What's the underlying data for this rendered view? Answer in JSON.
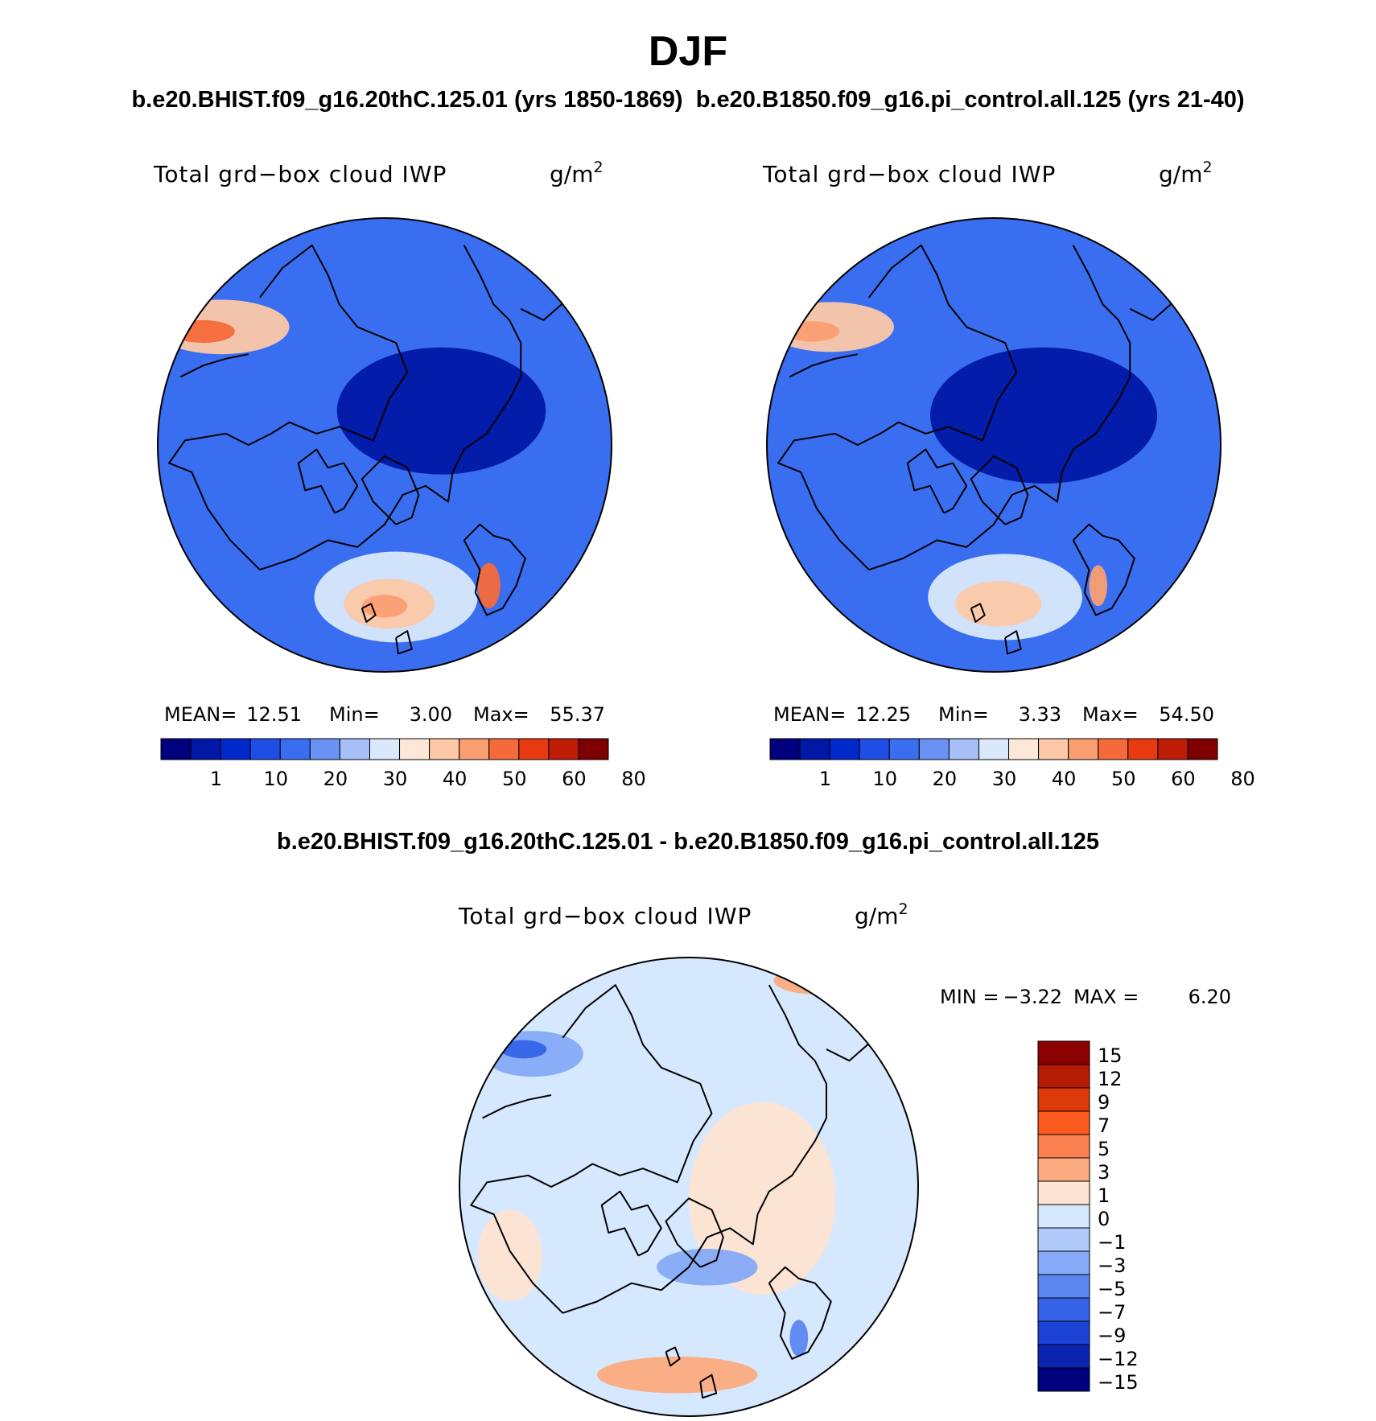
{
  "page": {
    "title": "DJF",
    "case_header_left": "b.e20.BHIST.f09_g16.20thC.125.01 (yrs 1850-1869)",
    "case_header_right": "b.e20.B1850.f09_g16.pi_control.all.125 (yrs 21-40)",
    "diff_header": "b.e20.BHIST.f09_g16.20thC.125.01 - b.e20.B1850.f09_g16.pi_control.all.125"
  },
  "chart_data": [
    {
      "type": "heatmap",
      "projection": "north-polar-stereographic",
      "title": "Total grd−box cloud IWP",
      "units_base": "g/m",
      "units_exp": "2",
      "stats": {
        "mean_label": "MEAN=",
        "mean": "12.51",
        "min_label": "Min=",
        "min": "3.00",
        "max_label": "Max=",
        "max": "55.37"
      },
      "colorbar": {
        "orientation": "horizontal",
        "levels": [
          "1",
          "10",
          "20",
          "30",
          "40",
          "50",
          "60",
          "80"
        ],
        "colors": [
          "#00007f",
          "#0018a5",
          "#0029cc",
          "#1e4ee6",
          "#3a6ef0",
          "#6a92f5",
          "#a6c0f7",
          "#d9e8fb",
          "#fde8d8",
          "#fcc8a8",
          "#fb9e72",
          "#f56a3a",
          "#e73a10",
          "#be1c05",
          "#7f0000"
        ]
      },
      "features": [
        {
          "name": "pacific-low",
          "cx": -0.72,
          "cy": -0.52,
          "rx": 0.3,
          "ry": 0.12,
          "level": 9
        },
        {
          "name": "pacific-core",
          "cx": -0.8,
          "cy": -0.5,
          "rx": 0.14,
          "ry": 0.05,
          "level": 11
        },
        {
          "name": "atlantic-storm-track",
          "cx": 0.05,
          "cy": 0.67,
          "rx": 0.36,
          "ry": 0.2,
          "level": 7
        },
        {
          "name": "atlantic-core",
          "cx": 0.02,
          "cy": 0.7,
          "rx": 0.2,
          "ry": 0.11,
          "level": 9
        },
        {
          "name": "atlantic-peak",
          "cx": 0.0,
          "cy": 0.71,
          "rx": 0.1,
          "ry": 0.05,
          "level": 10
        },
        {
          "name": "norway-coast",
          "cx": 0.46,
          "cy": 0.62,
          "rx": 0.05,
          "ry": 0.1,
          "level": 11
        },
        {
          "name": "arctic-minimum",
          "cx": 0.25,
          "cy": -0.15,
          "rx": 0.46,
          "ry": 0.28,
          "level": 1
        }
      ]
    },
    {
      "type": "heatmap",
      "projection": "north-polar-stereographic",
      "title": "Total grd−box cloud IWP",
      "units_base": "g/m",
      "units_exp": "2",
      "stats": {
        "mean_label": "MEAN=",
        "mean": "12.25",
        "min_label": "Min=",
        "min": "3.33",
        "max_label": "Max=",
        "max": "54.50"
      },
      "colorbar": {
        "orientation": "horizontal",
        "levels": [
          "1",
          "10",
          "20",
          "30",
          "40",
          "50",
          "60",
          "80"
        ],
        "colors": [
          "#00007f",
          "#0018a5",
          "#0029cc",
          "#1e4ee6",
          "#3a6ef0",
          "#6a92f5",
          "#a6c0f7",
          "#d9e8fb",
          "#fde8d8",
          "#fcc8a8",
          "#fb9e72",
          "#f56a3a",
          "#e73a10",
          "#be1c05",
          "#7f0000"
        ]
      },
      "features": [
        {
          "name": "pacific-low",
          "cx": -0.72,
          "cy": -0.52,
          "rx": 0.28,
          "ry": 0.11,
          "level": 9
        },
        {
          "name": "pacific-core",
          "cx": -0.8,
          "cy": -0.5,
          "rx": 0.12,
          "ry": 0.045,
          "level": 10
        },
        {
          "name": "atlantic-storm-track",
          "cx": 0.05,
          "cy": 0.67,
          "rx": 0.34,
          "ry": 0.19,
          "level": 7
        },
        {
          "name": "atlantic-core",
          "cx": 0.02,
          "cy": 0.7,
          "rx": 0.19,
          "ry": 0.1,
          "level": 9
        },
        {
          "name": "norway-coast",
          "cx": 0.46,
          "cy": 0.62,
          "rx": 0.04,
          "ry": 0.09,
          "level": 10
        },
        {
          "name": "arctic-minimum",
          "cx": 0.22,
          "cy": -0.13,
          "rx": 0.5,
          "ry": 0.3,
          "level": 1
        }
      ]
    },
    {
      "type": "heatmap",
      "projection": "north-polar-stereographic",
      "title": "Total grd−box cloud IWP",
      "units_base": "g/m",
      "units_exp": "2",
      "stats": {
        "min_label": "MIN =",
        "min": "−3.22",
        "max_label": "MAX =",
        "max": "6.20"
      },
      "colorbar": {
        "orientation": "vertical",
        "levels": [
          "15",
          "12",
          "9",
          "7",
          "5",
          "3",
          "1",
          "0",
          "−1",
          "−3",
          "−5",
          "−7",
          "−9",
          "−12",
          "−15"
        ],
        "colors": [
          "#8b0000",
          "#b51c05",
          "#dc3a0a",
          "#fa5a1e",
          "#fb8050",
          "#fcab80",
          "#fde4d2",
          "#d6e8fd",
          "#b0cafb",
          "#86aaf7",
          "#5c87f0",
          "#3563e8",
          "#1a43d6",
          "#0a24b0",
          "#00007f"
        ]
      },
      "features": [
        {
          "name": "pacific-increase",
          "cx": -0.68,
          "cy": -0.58,
          "rx": 0.22,
          "ry": 0.1,
          "level": 9
        },
        {
          "name": "pacific-core",
          "cx": -0.72,
          "cy": -0.6,
          "rx": 0.1,
          "ry": 0.04,
          "level": 11
        },
        {
          "name": "bering-decrease",
          "cx": 0.55,
          "cy": -0.9,
          "rx": 0.18,
          "ry": 0.06,
          "level": 5
        },
        {
          "name": "arctic-decrease",
          "cx": 0.32,
          "cy": 0.05,
          "rx": 0.32,
          "ry": 0.42,
          "level": 6
        },
        {
          "name": "baffin-increase",
          "cx": 0.08,
          "cy": 0.35,
          "rx": 0.22,
          "ry": 0.08,
          "level": 9
        },
        {
          "name": "atlantic-decrease",
          "cx": -0.05,
          "cy": 0.82,
          "rx": 0.35,
          "ry": 0.08,
          "level": 5
        },
        {
          "name": "norway-increase",
          "cx": 0.48,
          "cy": 0.66,
          "rx": 0.04,
          "ry": 0.08,
          "level": 10
        },
        {
          "name": "siberia-decrease",
          "cx": -0.78,
          "cy": 0.3,
          "rx": 0.14,
          "ry": 0.2,
          "level": 6
        }
      ]
    }
  ]
}
